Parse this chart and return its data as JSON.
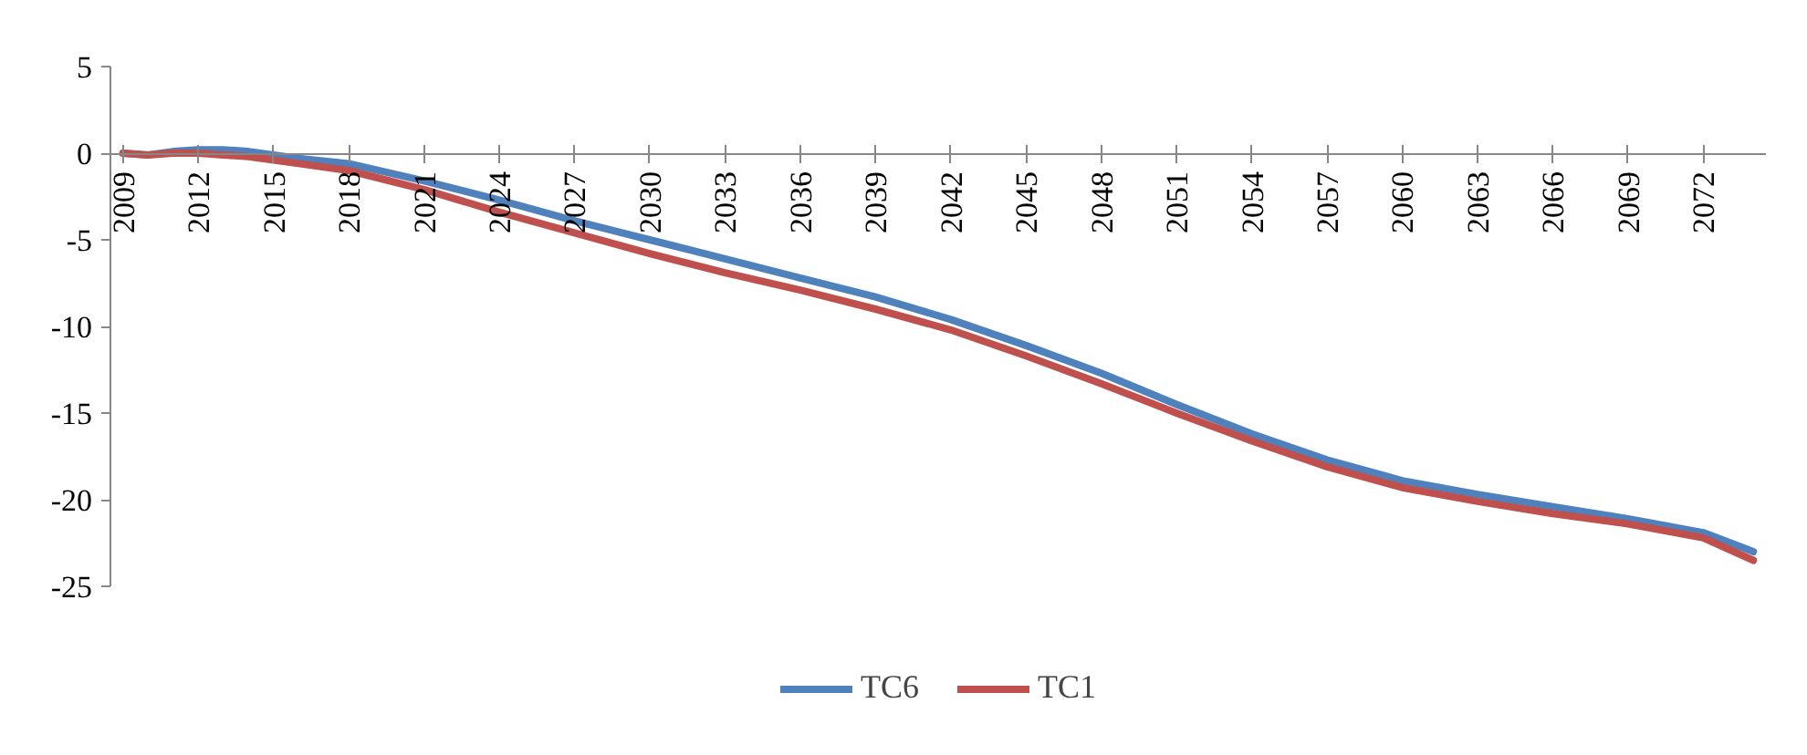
{
  "chart_data": {
    "type": "line",
    "xlim": [
      2008.5,
      2074.5
    ],
    "xticks": [
      2009,
      2012,
      2015,
      2018,
      2021,
      2024,
      2027,
      2030,
      2033,
      2036,
      2039,
      2042,
      2045,
      2048,
      2051,
      2054,
      2057,
      2060,
      2063,
      2066,
      2069,
      2072
    ],
    "ylim": [
      -25,
      5
    ],
    "yticks": [
      -25,
      -20,
      -15,
      -10,
      -5,
      0,
      5
    ],
    "grid": false,
    "legend": "bottom",
    "marker": "none",
    "line_style": "solid",
    "series": [
      {
        "name": "TC6",
        "color": "#4f81bd",
        "x": [
          2009,
          2010,
          2011,
          2012,
          2013,
          2014,
          2015,
          2016,
          2018,
          2021,
          2024,
          2027,
          2030,
          2033,
          2036,
          2039,
          2042,
          2045,
          2048,
          2051,
          2054,
          2057,
          2060,
          2063,
          2066,
          2069,
          2072,
          2074
        ],
        "values": [
          0,
          -0.1,
          0.1,
          0.2,
          0.2,
          0.1,
          -0.1,
          -0.3,
          -0.6,
          -1.6,
          -2.7,
          -3.9,
          -5.0,
          -6.1,
          -7.2,
          -8.3,
          -9.6,
          -11.1,
          -12.7,
          -14.5,
          -16.2,
          -17.7,
          -18.9,
          -19.7,
          -20.4,
          -21.1,
          -21.9,
          -23.0
        ]
      },
      {
        "name": "TC1",
        "color": "#c0504d",
        "x": [
          2009,
          2010,
          2011,
          2012,
          2013,
          2014,
          2015,
          2016,
          2018,
          2021,
          2024,
          2027,
          2030,
          2033,
          2036,
          2039,
          2042,
          2045,
          2048,
          2051,
          2054,
          2057,
          2060,
          2063,
          2066,
          2069,
          2072,
          2074
        ],
        "values": [
          0,
          -0.1,
          0,
          0,
          -0.1,
          -0.2,
          -0.4,
          -0.6,
          -1.0,
          -2.1,
          -3.4,
          -4.6,
          -5.8,
          -6.9,
          -7.9,
          -9.0,
          -10.2,
          -11.7,
          -13.3,
          -15.0,
          -16.6,
          -18.1,
          -19.3,
          -20.1,
          -20.8,
          -21.4,
          -22.2,
          -23.5
        ]
      }
    ]
  }
}
